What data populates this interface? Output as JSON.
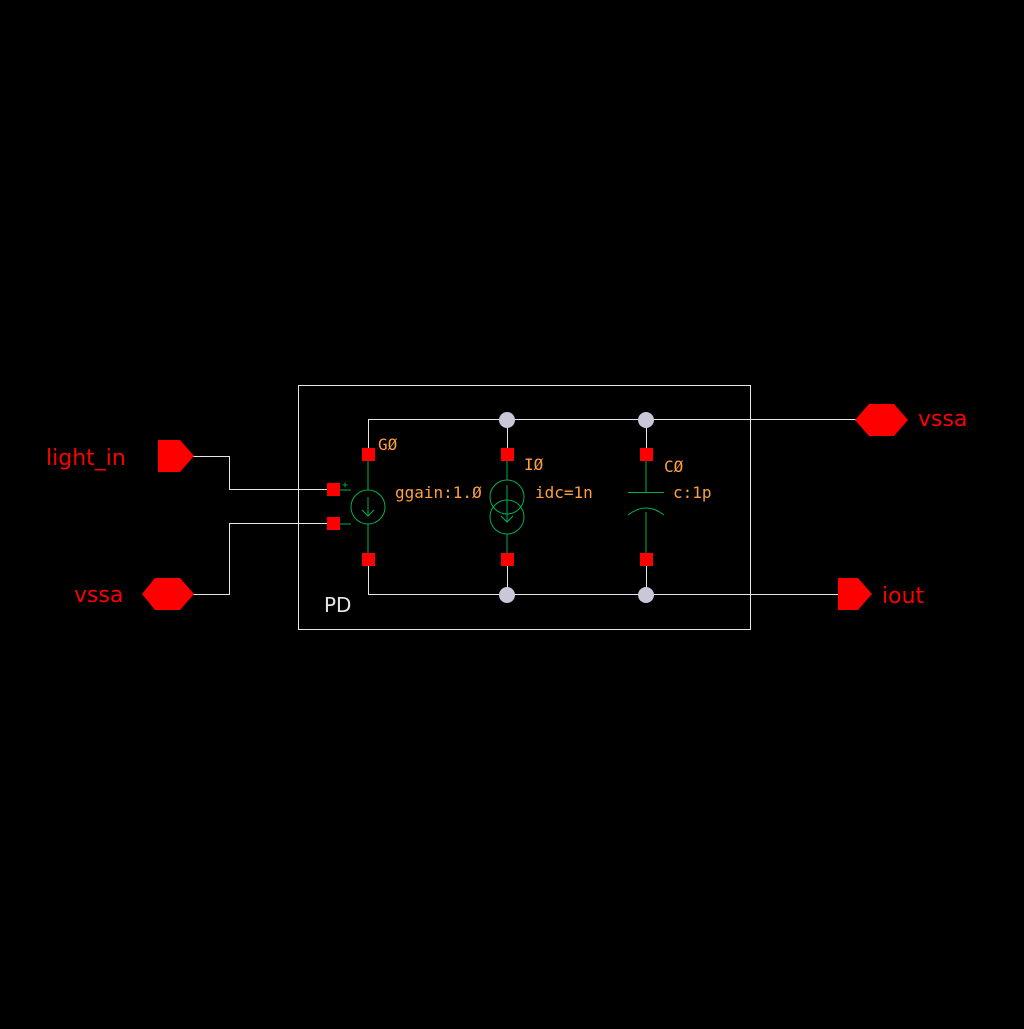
{
  "colors": {
    "background": "#000000",
    "wire": "#e6e6e6",
    "pin": "#ff0000",
    "pin_label": "#ff0000",
    "device": "#00b050",
    "instance_label": "#ffa040",
    "param_label": "#ffa040",
    "junction": "#c8c8d8",
    "terminal": "#ff0000",
    "box": "#e6e6e6",
    "box_label": "#e6e6e6"
  },
  "pins": {
    "light_in": "light_in",
    "vssa_left": "vssa",
    "vssa_right": "vssa",
    "iout": "iout"
  },
  "box": {
    "label": "PD"
  },
  "devices": {
    "g0": {
      "name": "GØ",
      "param": "ggain:1.Ø",
      "plus_sign": "+",
      "icon": "vccs-arrow-down-icon"
    },
    "i0": {
      "name": "IØ",
      "param": "idc=1n",
      "icon": "current-source-icon"
    },
    "c0": {
      "name": "CØ",
      "param": "c:1p",
      "icon": "capacitor-icon"
    }
  }
}
